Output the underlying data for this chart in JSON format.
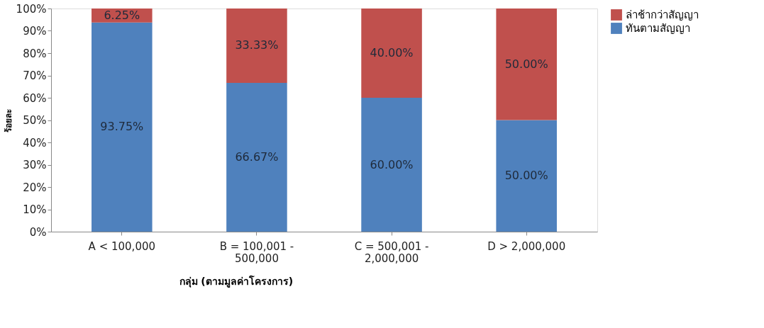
{
  "chart_data": {
    "type": "bar",
    "stacked": true,
    "xlabel": "กลุ่ม (ตามมูลค่าโครงการ)",
    "ylabel": "ร้อยละ",
    "categories": [
      "A < 100,000",
      "B = 100,001 - 500,000",
      "C = 500,001 - 2,000,000",
      "D > 2,000,000"
    ],
    "series": [
      {
        "name": "ทันตามสัญญา",
        "color": "#4f81bd",
        "values": [
          93.75,
          66.67,
          60.0,
          50.0
        ],
        "value_labels": [
          "93.75%",
          "66.67%",
          "60.00%",
          "50.00%"
        ]
      },
      {
        "name": "ล่าช้ากว่าสัญญา",
        "color": "#c0504d",
        "values": [
          6.25,
          33.33,
          40.0,
          50.0
        ],
        "value_labels": [
          "6.25%",
          "33.33%",
          "40.00%",
          "50.00%"
        ]
      }
    ],
    "ylim": [
      0,
      100
    ],
    "yticks": [
      {
        "value": 0,
        "label": "0%"
      },
      {
        "value": 10,
        "label": "10%"
      },
      {
        "value": 20,
        "label": "20%"
      },
      {
        "value": 30,
        "label": "30%"
      },
      {
        "value": 40,
        "label": "40%"
      },
      {
        "value": 50,
        "label": "50%"
      },
      {
        "value": 60,
        "label": "60%"
      },
      {
        "value": 70,
        "label": "70%"
      },
      {
        "value": 80,
        "label": "80%"
      },
      {
        "value": 90,
        "label": "90%"
      },
      {
        "value": 100,
        "label": "100%"
      }
    ],
    "grid": false,
    "legend": "right"
  }
}
